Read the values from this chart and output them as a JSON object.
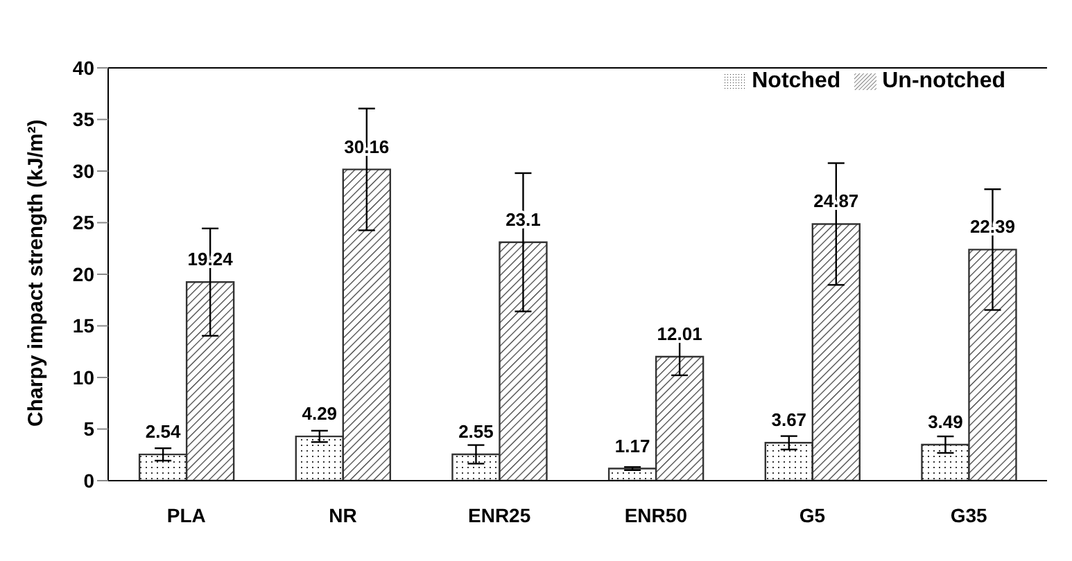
{
  "chart_data": {
    "type": "bar",
    "ylabel": "Charpy impact strength (kJ/m²)",
    "categories": [
      "PLA",
      "NR",
      "ENR25",
      "ENR50",
      "G5",
      "G35"
    ],
    "series": [
      {
        "name": "Notched",
        "color": "#333333",
        "values": [
          2.54,
          4.29,
          2.55,
          1.17,
          3.67,
          3.49
        ],
        "errors": [
          0.6,
          0.55,
          0.9,
          0.15,
          0.65,
          0.8
        ]
      },
      {
        "name": "Un-notched",
        "color": "#333333",
        "values": [
          19.24,
          30.16,
          23.1,
          12.01,
          24.87,
          22.39
        ],
        "errors": [
          5.2,
          5.9,
          6.7,
          1.8,
          5.9,
          5.85
        ]
      }
    ],
    "ylim": [
      0,
      40
    ],
    "yticks": [
      0,
      5,
      10,
      15,
      20,
      25,
      30,
      35,
      40
    ],
    "grid": false,
    "legend": "top right",
    "data_labels": true
  }
}
